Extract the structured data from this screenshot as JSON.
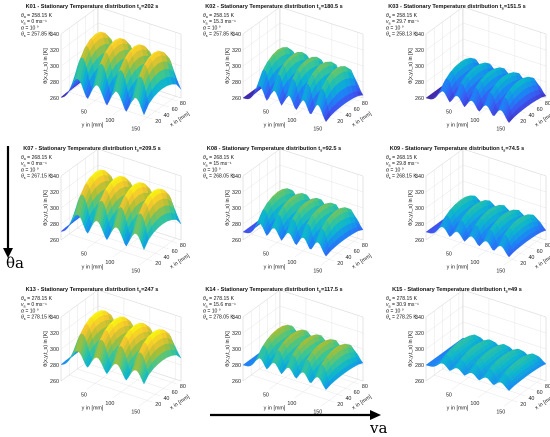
{
  "chart_data": [
    {
      "type": "surface",
      "title": "K01 - Stationary Temperature distribution t_s=202 s",
      "annotations": [
        "θ_a = 258.15 K",
        "v_a = 0 ms⁻¹",
        "α = 10 °",
        "θ_s = 257.85 K"
      ],
      "zlabel": "θ(x,y,t_s) in [K]",
      "xlabel": "y in [mm]",
      "ylabel": "x in [mm]",
      "zlim": [
        260,
        340
      ],
      "z_ticks": [
        260,
        280,
        300,
        320,
        340
      ],
      "y_ticks": [
        50,
        100,
        150
      ],
      "x_ticks": [
        20,
        40,
        60,
        80
      ],
      "ridges": 4,
      "z_base": 260,
      "z_peak": 330
    },
    {
      "type": "surface",
      "title": "K02 - Stationary Temperature distribution t_s=180.5 s",
      "annotations": [
        "θ_a = 258.15 K",
        "v_a = 15.3 ms⁻¹",
        "α = 10 °",
        "θ_s = 257.85 K"
      ],
      "zlabel": "θ(x,y,t_s) in [K]",
      "xlabel": "y in [mm]",
      "ylabel": "x in [mm]",
      "zlim": [
        260,
        340
      ],
      "z_ticks": [
        260,
        280,
        300,
        320,
        340
      ],
      "y_ticks": [
        50,
        100,
        150
      ],
      "x_ticks": [
        20,
        40,
        60,
        80
      ],
      "ridges": 5,
      "z_base": 260,
      "z_peak": 310
    },
    {
      "type": "surface",
      "title": "K03 - Stationary Temperature distribution t_s=151.5 s",
      "annotations": [
        "θ_a = 258.15 K",
        "v_a = 29.7 ms⁻¹",
        "α = 10 °",
        "θ_s = 258.13 K"
      ],
      "zlabel": "θ(x,y,t_s) in [K]",
      "xlabel": "y in [mm]",
      "ylabel": "x in [mm]",
      "zlim": [
        260,
        340
      ],
      "z_ticks": [
        260,
        280,
        300,
        320,
        340
      ],
      "y_ticks": [
        50,
        100,
        150
      ],
      "x_ticks": [
        20,
        40,
        60,
        80
      ],
      "ridges": 5,
      "z_base": 260,
      "z_peak": 295
    },
    {
      "type": "surface",
      "title": "K07 - Stationary Temperature distribution t_s=209.5 s",
      "annotations": [
        "θ_a = 268.15 K",
        "v_a = 0 ms⁻¹",
        "α = 10 °",
        "θ_s = 267.15 K"
      ],
      "zlabel": "θ(x,y,t_s) in [K]",
      "xlabel": "y in [mm]",
      "ylabel": "x in [mm]",
      "zlim": [
        260,
        340
      ],
      "z_ticks": [
        260,
        280,
        300,
        320,
        340
      ],
      "y_ticks": [
        50,
        100,
        150
      ],
      "x_ticks": [
        20,
        40,
        60,
        80
      ],
      "ridges": 4,
      "z_base": 270,
      "z_peak": 335
    },
    {
      "type": "surface",
      "title": "K08 - Stationary Temperature distribution t_s=92.5 s",
      "annotations": [
        "θ_a = 268.15 K",
        "v_a = 15 ms⁻¹",
        "α = 10 °",
        "θ_s = 268.05 K"
      ],
      "zlabel": "θ(x,y,t_s) in [K]",
      "xlabel": "y in [mm]",
      "ylabel": "x in [mm]",
      "zlim": [
        260,
        340
      ],
      "z_ticks": [
        260,
        280,
        300,
        320,
        340
      ],
      "y_ticks": [
        50,
        100,
        150
      ],
      "x_ticks": [
        20,
        40,
        60,
        80
      ],
      "ridges": 5,
      "z_base": 270,
      "z_peak": 310
    },
    {
      "type": "surface",
      "title": "K09 - Stationary Temperature distribution t_s=74.5 s",
      "annotations": [
        "θ_a = 268.15 K",
        "v_a = 29.8 ms⁻¹",
        "α = 10 °",
        "θ_s = 268.15 K"
      ],
      "zlabel": "θ(x,y,t_s) in [K]",
      "xlabel": "y in [mm]",
      "ylabel": "x in [mm]",
      "zlim": [
        260,
        340
      ],
      "z_ticks": [
        260,
        280,
        300,
        320,
        340
      ],
      "y_ticks": [
        50,
        100,
        150
      ],
      "x_ticks": [
        20,
        40,
        60,
        80
      ],
      "ridges": 5,
      "z_base": 270,
      "z_peak": 300
    },
    {
      "type": "surface",
      "title": "K13 - Stationary Temperature distribution t_s=247 s",
      "annotations": [
        "θ_a = 278.15 K",
        "v_a = 0 ms⁻¹",
        "α = 10 °",
        "θ_s = 278.15 K"
      ],
      "zlabel": "θ(x,y,t_s) in [K]",
      "xlabel": "y in [mm]",
      "ylabel": "x in [mm]",
      "zlim": [
        260,
        340
      ],
      "z_ticks": [
        260,
        280,
        300,
        320,
        340
      ],
      "y_ticks": [
        50,
        100,
        150
      ],
      "x_ticks": [
        20,
        40,
        60,
        80
      ],
      "ridges": 4,
      "z_base": 280,
      "z_peak": 335
    },
    {
      "type": "surface",
      "title": "K14 - Stationary Temperature distribution t_s=117.5 s",
      "annotations": [
        "θ_a = 278.15 K",
        "v_a = 15.6 ms⁻¹",
        "α = 10 °",
        "θ_s = 278.05 K"
      ],
      "zlabel": "θ(x,y,t_s) in [K]",
      "xlabel": "y in [mm]",
      "ylabel": "x in [mm]",
      "zlim": [
        260,
        340
      ],
      "z_ticks": [
        260,
        280,
        300,
        320,
        340
      ],
      "y_ticks": [
        50,
        100,
        150
      ],
      "x_ticks": [
        20,
        40,
        60,
        80
      ],
      "ridges": 5,
      "z_base": 280,
      "z_peak": 315
    },
    {
      "type": "surface",
      "title": "K15 - Stationary Temperature distribution t_s=49 s",
      "annotations": [
        "θ_a = 278.15 K",
        "v_a = 30.9 ms⁻¹",
        "α = 10 °",
        "θ_s = 278.25 K"
      ],
      "zlabel": "θ(x,y,t_s) in [K]",
      "xlabel": "y in [mm]",
      "ylabel": "x in [mm]",
      "zlim": [
        260,
        340
      ],
      "z_ticks": [
        260,
        280,
        300,
        320,
        340
      ],
      "y_ticks": [
        50,
        100,
        150
      ],
      "x_ticks": [
        20,
        40,
        60,
        80
      ],
      "ridges": 5,
      "z_base": 280,
      "z_peak": 300
    }
  ],
  "figure_labels": {
    "vertical_arrow": "θa",
    "horizontal_arrow": "va"
  },
  "colormap": [
    "#3e26a8",
    "#3d52f1",
    "#1a86f5",
    "#0bb5d0",
    "#3dc690",
    "#a6be36",
    "#f5c52f",
    "#f9fb0e"
  ]
}
